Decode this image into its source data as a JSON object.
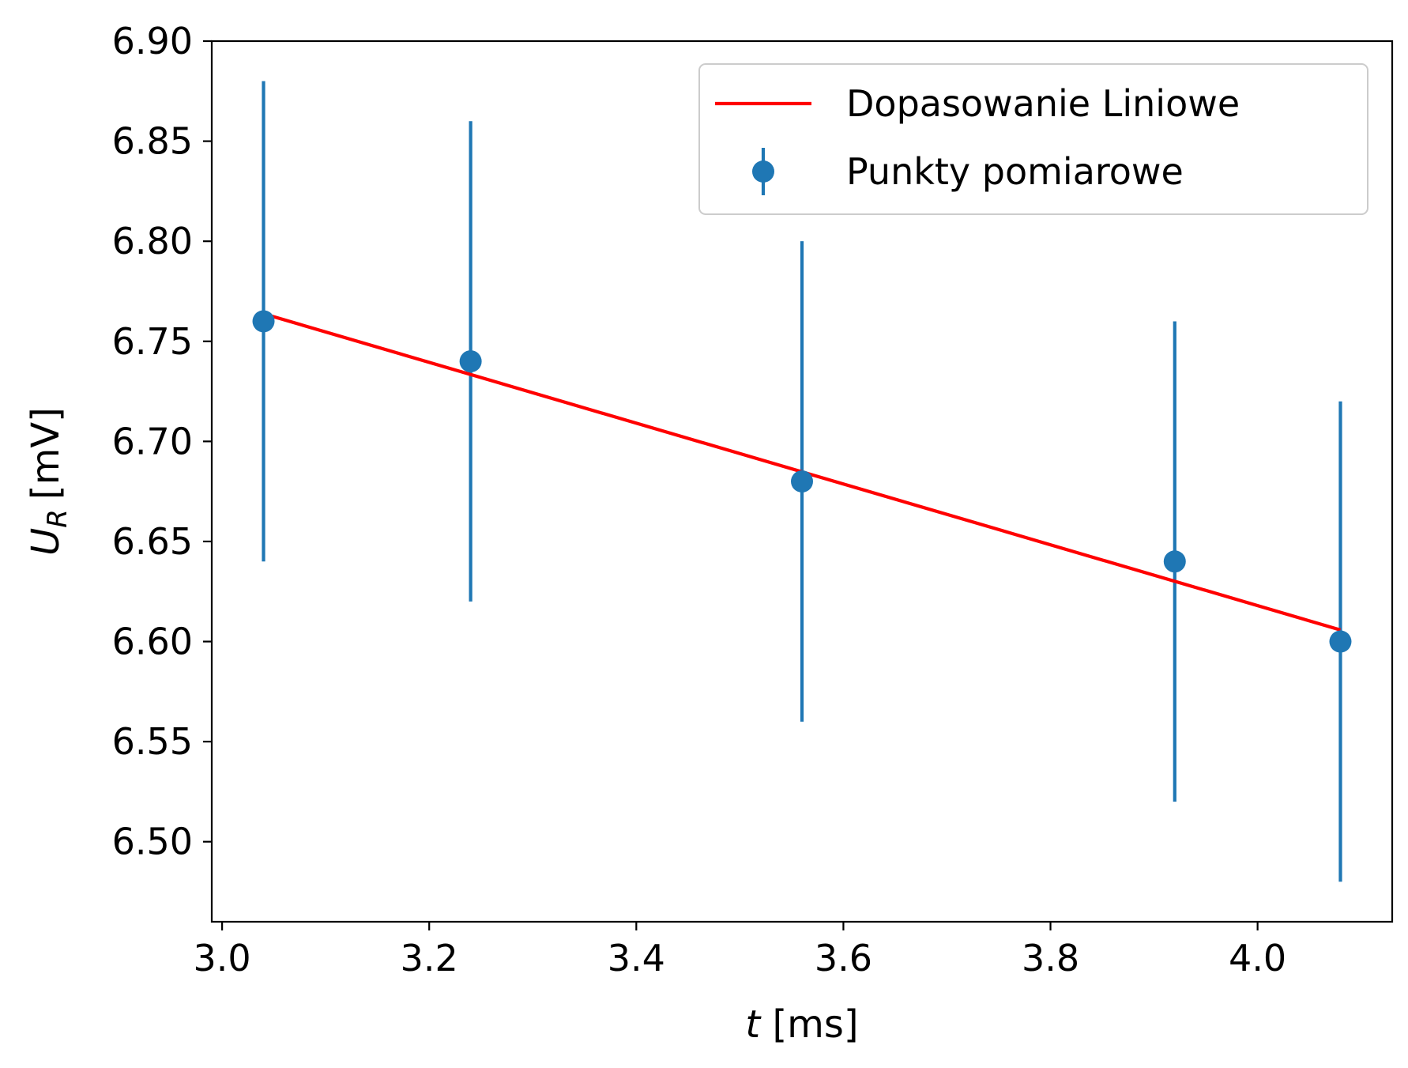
{
  "chart_data": {
    "type": "scatter",
    "xlabel_var": "t",
    "xlabel_unit": "[ms]",
    "ylabel_var": "U",
    "ylabel_sub": "R",
    "ylabel_unit": "[mV]",
    "xlim": [
      2.99,
      4.13
    ],
    "ylim": [
      6.46,
      6.9
    ],
    "xticks": [
      3.0,
      3.2,
      3.4,
      3.6,
      3.8,
      4.0
    ],
    "xtick_labels": [
      "3.0",
      "3.2",
      "3.4",
      "3.6",
      "3.8",
      "4.0"
    ],
    "yticks": [
      6.5,
      6.55,
      6.6,
      6.65,
      6.7,
      6.75,
      6.8,
      6.85,
      6.9
    ],
    "ytick_labels": [
      "6.50",
      "6.55",
      "6.60",
      "6.65",
      "6.70",
      "6.75",
      "6.80",
      "6.85",
      "6.90"
    ],
    "grid": false,
    "legend_position": "top-right",
    "series": [
      {
        "name": "Punkty pomiarowe",
        "kind": "errorbar",
        "color": "#1f77b4",
        "x": [
          3.04,
          3.24,
          3.56,
          3.92,
          4.08
        ],
        "y": [
          6.76,
          6.74,
          6.68,
          6.64,
          6.6
        ],
        "yerr": [
          0.12,
          0.12,
          0.12,
          0.12,
          0.12
        ]
      },
      {
        "name": "Dopasowanie Liniowe",
        "kind": "line",
        "color": "#ff0000",
        "x": [
          3.04,
          4.08
        ],
        "y": [
          6.7638,
          6.6058
        ]
      }
    ]
  }
}
